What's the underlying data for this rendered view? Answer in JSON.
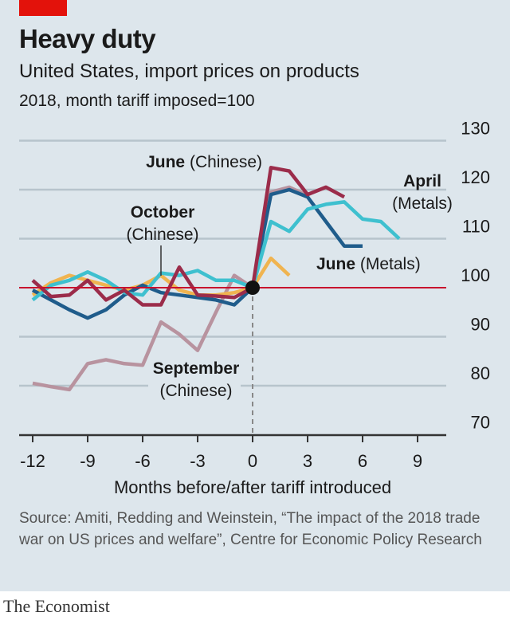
{
  "header": {
    "title": "Heavy duty",
    "subtitle": "United States, import prices on products",
    "unit_note": "2018, month tariff imposed=100"
  },
  "footer": {
    "source": "Source: Amiti, Redding and Weinstein, “The impact of the 2018 trade war on US prices and welfare”, Centre for Economic Policy Research",
    "brand": "The Economist"
  },
  "chart_data": {
    "type": "line",
    "title": "Heavy duty",
    "subtitle": "United States, import prices on products",
    "xlabel": "Months before/after tariff introduced",
    "ylabel": "",
    "xlim": [
      -12,
      9
    ],
    "ylim": [
      70,
      130
    ],
    "x_ticks": [
      -12,
      -9,
      -6,
      -3,
      0,
      3,
      6,
      9
    ],
    "y_ticks": [
      70,
      80,
      90,
      100,
      110,
      120,
      130
    ],
    "grid": true,
    "baseline": 100,
    "colors": {
      "baseline": "#c8102e",
      "june_chinese": "#9b2c4a",
      "april_metals": "#3ec0cf",
      "june_metals": "#1f5c8b",
      "october_chinese": "#f0b450",
      "september_chinese": "#b8939f",
      "grid": "#b7c4cc",
      "axis": "#333333",
      "marker": "#111111"
    },
    "series": [
      {
        "key": "june_chinese",
        "label_main": "June",
        "label_sub": "(Chinese)",
        "x": [
          -12,
          -11,
          -10,
          -9,
          -8,
          -7,
          -6,
          -5,
          -4,
          -3,
          -2,
          -1,
          0,
          1,
          2,
          3,
          4,
          5
        ],
        "y": [
          101.5,
          98.2,
          98.5,
          101.5,
          97.5,
          99.5,
          96.5,
          96.5,
          104.2,
          98.5,
          98.3,
          98.0,
          100.0,
          124.5,
          123.8,
          119.0,
          120.5,
          118.5
        ]
      },
      {
        "key": "april_metals",
        "label_main": "April",
        "label_sub": "(Metals)",
        "x": [
          -12,
          -11,
          -10,
          -9,
          -8,
          -7,
          -6,
          -5,
          -4,
          -3,
          -2,
          -1,
          0,
          1,
          2,
          3,
          4,
          5,
          6,
          7,
          8
        ],
        "y": [
          97.5,
          100.5,
          101.5,
          103.2,
          101.5,
          99.0,
          98.5,
          103.0,
          102.5,
          103.5,
          101.5,
          101.5,
          100.0,
          113.5,
          111.5,
          116.0,
          117.0,
          117.5,
          114.0,
          113.5,
          110.0
        ]
      },
      {
        "key": "june_metals",
        "label_main": "June",
        "label_sub": "(Metals)",
        "x": [
          -12,
          -11,
          -10,
          -9,
          -8,
          -7,
          -6,
          -5,
          -4,
          -3,
          -2,
          -1,
          0,
          1,
          2,
          3,
          4,
          5,
          6
        ],
        "y": [
          99.5,
          97.5,
          95.5,
          93.8,
          95.5,
          98.5,
          100.5,
          99.0,
          98.5,
          98.0,
          97.5,
          96.5,
          100.0,
          119.0,
          120.0,
          118.5,
          113.5,
          108.5,
          108.5
        ]
      },
      {
        "key": "october_chinese",
        "label_main": "October",
        "label_sub": "(Chinese)",
        "x": [
          -12,
          -11,
          -10,
          -9,
          -8,
          -7,
          -6,
          -5,
          -4,
          -3,
          -2,
          -1,
          0,
          1,
          2
        ],
        "y": [
          98.5,
          101.0,
          102.5,
          101.5,
          100.5,
          99.5,
          100.5,
          102.5,
          99.5,
          98.5,
          98.5,
          99.0,
          100.0,
          106.0,
          102.5
        ]
      },
      {
        "key": "september_chinese",
        "label_main": "September",
        "label_sub": "(Chinese)",
        "x": [
          -12,
          -11,
          -10,
          -9,
          -8,
          -7,
          -6,
          -5,
          -4,
          -3,
          -2,
          -1,
          0,
          1,
          2,
          3
        ],
        "y": [
          80.5,
          79.8,
          79.2,
          84.5,
          85.3,
          84.5,
          84.2,
          93.0,
          90.5,
          87.2,
          95.0,
          102.5,
          100.0,
          119.5,
          120.5,
          118.8
        ]
      }
    ]
  }
}
